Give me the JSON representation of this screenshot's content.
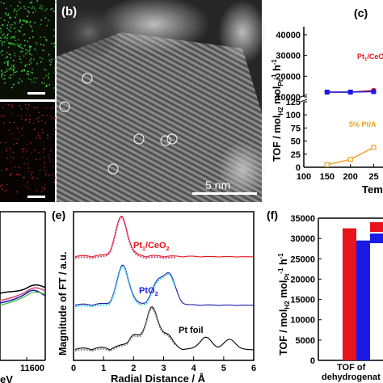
{
  "panels": {
    "b": {
      "label": "(b)",
      "scale_bar": "5 nm"
    },
    "c": {
      "label": "(c)",
      "ylabel": "TOF / mol",
      "ylabel_sub1": "H2",
      "ylabel_mid": " mol",
      "ylabel_sub2": "Pt",
      "ylabel_tail": " h",
      "ylabel_sup": "-1",
      "xlabel": "Tem",
      "series1_label_main": "Pt",
      "series1_label_sub": "1",
      "series1_label_tail": "/CeO",
      "series2_label": "5% Pt/A"
    },
    "d": {
      "xlabel_tick": "11600",
      "xlabel_unit": "eV"
    },
    "e": {
      "label": "(e)",
      "ylabel": "Magnitude of FT / a.u.",
      "xlabel": "Radial Distance / Å",
      "label_pt1": "Pt",
      "label_pt1_sub": "1",
      "label_pt1_tail": "/CeO",
      "label_pt1_sub2": "2",
      "label_pto2": "PtO",
      "label_pto2_sub": "2",
      "label_ptfoil": "Pt foil"
    },
    "f": {
      "label": "(f)",
      "ylabel": "TOF / mol",
      "ylabel_sub1": "H2",
      "ylabel_mid": " mol",
      "ylabel_sub2": "Pt",
      "ylabel_tail": " h",
      "ylabel_sup": "-1",
      "xlabel_line1": "TOF of",
      "xlabel_line2": "dehydrogenat"
    }
  },
  "colors": {
    "red": "#e8141b",
    "blue": "#1b1be6",
    "orange": "#f0a020",
    "navy": "#1a1aa8",
    "cyan": "#2bc8e8",
    "pink": "#d0447a",
    "green": "#3cb83c"
  },
  "chart_data": [
    {
      "panel": "c",
      "type": "line",
      "x": [
        150,
        200,
        250
      ],
      "xticks": [
        "150",
        "200",
        "25"
      ],
      "yticks_upper": [
        "10000",
        "20000",
        "30000",
        "40000"
      ],
      "yticks_lower": [
        "0",
        "25",
        "50",
        "75",
        "100",
        "125"
      ],
      "xlim": [
        100,
        270
      ],
      "y_break": [
        125,
        10000
      ],
      "series": [
        {
          "name": "Pt1/CeO2",
          "values": [
            null,
            6000,
            7000
          ]
        },
        {
          "name": "Pt1/CeO2",
          "values": [
            null,
            6000,
            6300
          ]
        },
        {
          "name": "5% Pt/Al2O3",
          "values": [
            5,
            15,
            38
          ]
        }
      ]
    },
    {
      "panel": "e",
      "type": "line",
      "xlabel": "Radial Distance / Å",
      "ylabel": "Magnitude of FT / a.u.",
      "xlim": [
        0,
        6
      ],
      "xticks": [
        "0",
        "1",
        "2",
        "3",
        "4",
        "5",
        "6"
      ],
      "series": [
        {
          "name": "Pt1/CeO2",
          "peaks": [
            [
              1.6,
              1.0
            ]
          ]
        },
        {
          "name": "PtO2",
          "peaks": [
            [
              1.65,
              1.0
            ],
            [
              2.8,
              0.55
            ],
            [
              3.2,
              0.75
            ]
          ]
        },
        {
          "name": "Pt foil",
          "peaks": [
            [
              2.0,
              0.3
            ],
            [
              2.6,
              1.0
            ],
            [
              3.1,
              0.35
            ],
            [
              4.4,
              0.3
            ],
            [
              5.2,
              0.25
            ]
          ]
        }
      ]
    },
    {
      "panel": "f",
      "type": "bar",
      "ylabel": "TOF / mol H2 mol Pt-1 h-1",
      "ylim": [
        0,
        35000
      ],
      "yticks": [
        "0",
        "5000",
        "10000",
        "15000",
        "20000",
        "25000",
        "30000",
        "35000"
      ],
      "categories": [
        "TOF of dehydrogenat"
      ],
      "series": [
        {
          "color": "red",
          "values": [
            32500
          ]
        },
        {
          "color": "blue",
          "values": [
            29500
          ]
        }
      ]
    }
  ]
}
